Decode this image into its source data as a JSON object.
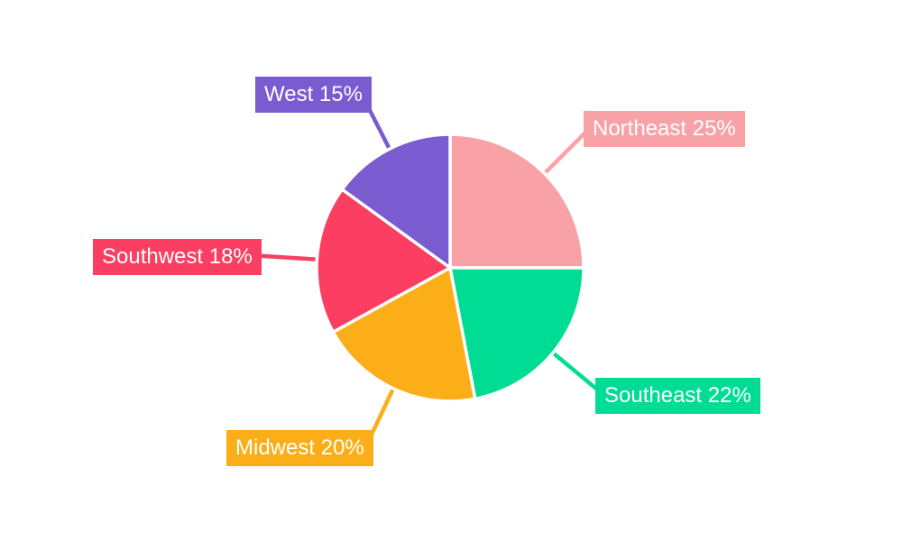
{
  "chart_data": {
    "type": "pie",
    "title": "",
    "direction": "clockwise",
    "start_angle_deg": 0,
    "background": "#ffffff",
    "label_text_color": "#ffffff",
    "slice_border_color": "#ffffff",
    "categories": [
      "Northeast",
      "Southeast",
      "Midwest",
      "Southwest",
      "West"
    ],
    "values": [
      25,
      22,
      20,
      18,
      15
    ],
    "slices": [
      {
        "label": "Northeast",
        "value": 25,
        "pct_text": "Northeast 25%",
        "color": "#f8a2a7"
      },
      {
        "label": "Southeast",
        "value": 22,
        "pct_text": "Southeast 22%",
        "color": "#00dc93"
      },
      {
        "label": "Midwest",
        "value": 20,
        "pct_text": "Midwest 20%",
        "color": "#fbae17"
      },
      {
        "label": "Southwest",
        "value": 18,
        "pct_text": "Southwest 18%",
        "color": "#fb3e61"
      },
      {
        "label": "West",
        "value": 15,
        "pct_text": "West 15%",
        "color": "#7a5bd0"
      }
    ]
  }
}
